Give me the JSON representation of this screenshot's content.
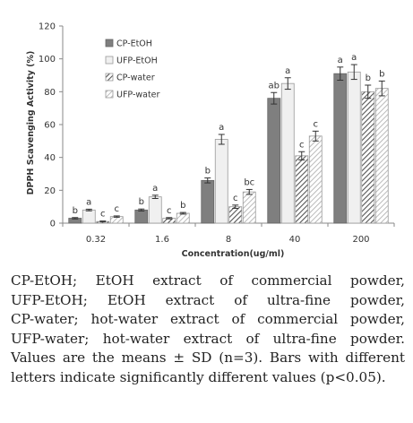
{
  "chart_data": {
    "type": "bar",
    "xlabel": "Concentration(ug/ml)",
    "ylabel": "DPPH Scavenging Activity (%)",
    "ylim": [
      0,
      120
    ],
    "yticks": [
      0,
      20,
      40,
      60,
      80,
      100,
      120
    ],
    "grid": false,
    "legend_position": "top-left",
    "categories": [
      "0.32",
      "1.6",
      "8",
      "40",
      "200"
    ],
    "series": [
      {
        "name": "CP-EtOH",
        "fill": "#7f7f7f",
        "pattern": "solid",
        "values": [
          3,
          8,
          26,
          76,
          91
        ],
        "errors": [
          0.4,
          0.6,
          1.5,
          3.5,
          4
        ],
        "labels": [
          "b",
          "b",
          "b",
          "ab",
          "a"
        ]
      },
      {
        "name": "UFP-EtOH",
        "fill": "#f0f0f0",
        "pattern": "light",
        "values": [
          8,
          16,
          51,
          85,
          92
        ],
        "errors": [
          0.5,
          1,
          3,
          3.5,
          4.5
        ],
        "labels": [
          "a",
          "a",
          "a",
          "a",
          "a"
        ]
      },
      {
        "name": "CP-water",
        "fill": "#ffffff",
        "pattern": "dark-hatch",
        "values": [
          1,
          3,
          10,
          41,
          80
        ],
        "errors": [
          0.3,
          0.4,
          1,
          2.5,
          4
        ],
        "labels": [
          "c",
          "c",
          "c",
          "c",
          "b"
        ]
      },
      {
        "name": "UFP-water",
        "fill": "#ffffff",
        "pattern": "light-hatch",
        "values": [
          4,
          6,
          19,
          53,
          82
        ],
        "errors": [
          0.4,
          0.5,
          1.5,
          3,
          4.5
        ],
        "labels": [
          "c",
          "b",
          "bc",
          "c",
          "b"
        ]
      }
    ]
  },
  "caption": {
    "line1": "CP-EtOH; EtOH extract of commercial powder,",
    "line2": "UFP-EtOH; EtOH extract of ultra-fine powder,",
    "line3": "CP-water; hot-water extract of commercial powder,",
    "line4": "UFP-water; hot-water extract of ultra-fine powder.",
    "line5": "Values are the means ± SD (n=3). Bars with different",
    "line6": "letters indicate significantly different values (p<0.05)."
  }
}
